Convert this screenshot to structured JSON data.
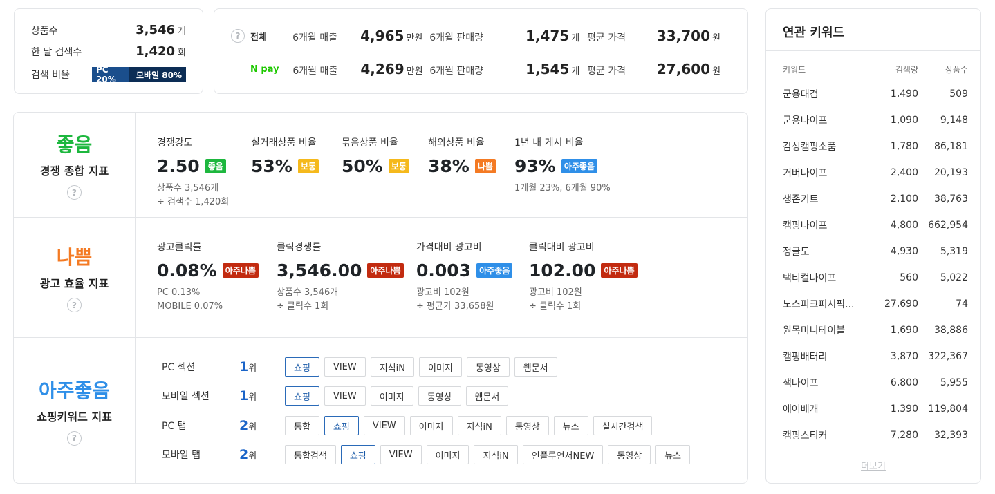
{
  "summary": {
    "product_count_label": "상품수",
    "product_count": "3,546",
    "product_count_unit": "개",
    "monthly_search_label": "한 달 검색수",
    "monthly_search": "1,420",
    "monthly_search_unit": "회",
    "search_ratio_label": "검색 비율",
    "pc_label": "PC 20%",
    "mobile_label": "모바일 80%",
    "pc_share": 0.2,
    "mobile_share": 0.8
  },
  "sales": {
    "rows": [
      {
        "scope": "전체",
        "sales_label": "6개월 매출",
        "sales": "4,965",
        "sales_unit": "만원",
        "volume_label": "6개월 판매량",
        "volume": "1,475",
        "volume_unit": "개",
        "price_label": "평균 가격",
        "price": "33,700",
        "price_unit": "원"
      },
      {
        "scope": "N pay",
        "sales_label": "6개월 매출",
        "sales": "4,269",
        "sales_unit": "만원",
        "volume_label": "6개월 판매량",
        "volume": "1,545",
        "volume_unit": "개",
        "price_label": "평균 가격",
        "price": "27,600",
        "price_unit": "원"
      }
    ],
    "npay_color": "#1ec800"
  },
  "competition": {
    "grade": "좋음",
    "grade_color": "#1db73e",
    "title": "경쟁 종합 지표",
    "stats": [
      {
        "label": "경쟁강도",
        "value": "2.50",
        "badge": "좋음",
        "sub1": "상품수 3,546개",
        "sub2": "÷ 검색수 1,420회"
      },
      {
        "label": "실거래상품 비율",
        "value": "53%",
        "badge": "보통"
      },
      {
        "label": "묶음상품 비율",
        "value": "50%",
        "badge": "보통"
      },
      {
        "label": "해외상품 비율",
        "value": "38%",
        "badge": "나쁨"
      },
      {
        "label": "1년 내 게시 비율",
        "value": "93%",
        "badge": "아주좋음",
        "sub1": "1개월 23%, 6개월 90%"
      }
    ]
  },
  "ad": {
    "grade": "나쁨",
    "grade_color": "#f47a23",
    "title": "광고 효율 지표",
    "stats": [
      {
        "label": "광고클릭률",
        "value": "0.08%",
        "badge": "아주나쁨",
        "sub1": "PC 0.13%",
        "sub2": "MOBILE 0.07%"
      },
      {
        "label": "클릭경쟁률",
        "value": "3,546.00",
        "badge": "아주나쁨",
        "sub1": "상품수 3,546개",
        "sub2": "÷ 클릭수 1회"
      },
      {
        "label": "가격대비 광고비",
        "value": "0.003",
        "badge": "아주좋음",
        "sub1": "광고비 102원",
        "sub2": "÷ 평균가 33,658원"
      },
      {
        "label": "클릭대비 광고비",
        "value": "102.00",
        "badge": "아주나쁨",
        "sub1": "광고비 102원",
        "sub2": "÷ 클릭수 1회"
      }
    ]
  },
  "shopping": {
    "grade": "아주좋음",
    "grade_color": "#2f8fe8",
    "title": "쇼핑키워드 지표",
    "rank_unit": "위",
    "rows": [
      {
        "label": "PC 섹션",
        "rank": "1",
        "chips": [
          "쇼핑",
          "VIEW",
          "지식iN",
          "이미지",
          "동영상",
          "웹문서"
        ],
        "active": 0
      },
      {
        "label": "모바일 섹션",
        "rank": "1",
        "chips": [
          "쇼핑",
          "VIEW",
          "이미지",
          "동영상",
          "웹문서"
        ],
        "active": 0
      },
      {
        "label": "PC 탭",
        "rank": "2",
        "chips": [
          "통합",
          "쇼핑",
          "VIEW",
          "이미지",
          "지식iN",
          "동영상",
          "뉴스",
          "실시간검색"
        ],
        "active": 1
      },
      {
        "label": "모바일 탭",
        "rank": "2",
        "chips": [
          "통합검색",
          "쇼핑",
          "VIEW",
          "이미지",
          "지식iN",
          "인플루언서NEW",
          "동영상",
          "뉴스"
        ],
        "active": 1
      }
    ]
  },
  "related": {
    "title": "연관 키워드",
    "headers": [
      "키워드",
      "검색량",
      "상품수"
    ],
    "rows": [
      [
        "군용대검",
        "1,490",
        "509"
      ],
      [
        "군용나이프",
        "1,090",
        "9,148"
      ],
      [
        "감성캠핑소품",
        "1,780",
        "86,181"
      ],
      [
        "거버나이프",
        "2,400",
        "20,193"
      ],
      [
        "생존키트",
        "2,100",
        "38,763"
      ],
      [
        "캠핑나이프",
        "4,800",
        "662,954"
      ],
      [
        "정글도",
        "4,930",
        "5,319"
      ],
      [
        "택티컬나이프",
        "560",
        "5,022"
      ],
      [
        "노스피크퍼시픽...",
        "27,690",
        "74"
      ],
      [
        "원목미니테이블",
        "1,690",
        "38,886"
      ],
      [
        "캠핑배터리",
        "3,870",
        "322,367"
      ],
      [
        "잭나이프",
        "6,800",
        "5,955"
      ],
      [
        "에어베개",
        "1,390",
        "119,804"
      ],
      [
        "캠핑스티커",
        "7,280",
        "32,393"
      ]
    ],
    "more_label": "더보기"
  },
  "badge_colors": {
    "좋음": "#1db73e",
    "보통": "#f5b91c",
    "나쁨": "#f47a23",
    "아주좋음": "#2f8fe8",
    "아주나쁨": "#c22b10"
  }
}
